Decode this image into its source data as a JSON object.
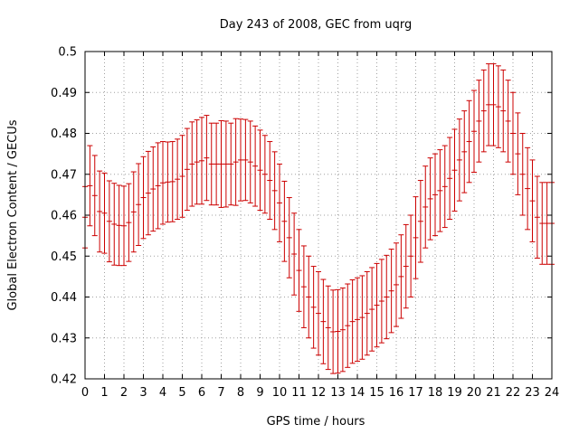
{
  "chart_data": {
    "type": "scatter",
    "title": "Day 243 of 2008, GEC from uqrg",
    "xlabel": "GPS time / hours",
    "ylabel": "Global Electron Content / GECUs",
    "xlim": [
      0,
      24
    ],
    "ylim": [
      0.42,
      0.5
    ],
    "grid": true,
    "error_bars": true,
    "series_color": "#cc0000",
    "xticks": [
      "0",
      "1",
      "2",
      "3",
      "4",
      "5",
      "6",
      "7",
      "8",
      "9",
      "10",
      "11",
      "12",
      "13",
      "14",
      "15",
      "16",
      "17",
      "18",
      "19",
      "20",
      "21",
      "22",
      "23",
      "24"
    ],
    "yticks": [
      "0.42",
      "0.43",
      "0.44",
      "0.45",
      "0.46",
      "0.47",
      "0.48",
      "0.49",
      "0.5"
    ],
    "x": [
      0,
      0.25,
      0.5,
      0.75,
      1,
      1.25,
      1.5,
      1.75,
      2,
      2.25,
      2.5,
      2.75,
      3,
      3.25,
      3.5,
      3.75,
      4,
      4.25,
      4.5,
      4.75,
      5,
      5.25,
      5.5,
      5.75,
      6,
      6.25,
      6.5,
      6.75,
      7,
      7.25,
      7.5,
      7.75,
      8,
      8.25,
      8.5,
      8.75,
      9,
      9.25,
      9.5,
      9.75,
      10,
      10.25,
      10.5,
      10.75,
      11,
      11.25,
      11.5,
      11.75,
      12,
      12.25,
      12.5,
      12.75,
      13,
      13.25,
      13.5,
      13.75,
      14,
      14.25,
      14.5,
      14.75,
      15,
      15.25,
      15.5,
      15.75,
      16,
      16.25,
      16.5,
      16.75,
      17,
      17.25,
      17.5,
      17.75,
      18,
      18.25,
      18.5,
      18.75,
      19,
      19.25,
      19.5,
      19.75,
      20,
      20.25,
      20.5,
      20.75,
      21,
      21.25,
      21.5,
      21.75,
      22,
      22.25,
      22.5,
      22.75,
      23,
      23.25,
      23.5,
      23.75,
      24
    ],
    "y": [
      0.4595,
      0.4672,
      0.4648,
      0.4609,
      0.4605,
      0.4585,
      0.4578,
      0.4575,
      0.4574,
      0.4582,
      0.4608,
      0.4626,
      0.4643,
      0.4654,
      0.4664,
      0.4672,
      0.4679,
      0.4681,
      0.4682,
      0.4688,
      0.4695,
      0.4712,
      0.4725,
      0.473,
      0.4733,
      0.474,
      0.4725,
      0.4725,
      0.4725,
      0.4725,
      0.4725,
      0.473,
      0.4735,
      0.4735,
      0.473,
      0.472,
      0.471,
      0.47,
      0.4685,
      0.466,
      0.463,
      0.4585,
      0.4545,
      0.4505,
      0.4465,
      0.4425,
      0.44,
      0.4375,
      0.436,
      0.434,
      0.4325,
      0.4315,
      0.4316,
      0.432,
      0.433,
      0.434,
      0.4345,
      0.435,
      0.436,
      0.437,
      0.438,
      0.439,
      0.44,
      0.4415,
      0.443,
      0.445,
      0.4475,
      0.45,
      0.4545,
      0.4585,
      0.462,
      0.464,
      0.465,
      0.466,
      0.467,
      0.469,
      0.471,
      0.4735,
      0.4755,
      0.478,
      0.4805,
      0.483,
      0.4855,
      0.487,
      0.487,
      0.4865,
      0.4855,
      0.483,
      0.48,
      0.475,
      0.47,
      0.4665,
      0.4635,
      0.4595,
      0.458,
      0.458,
      0.458
    ],
    "err": [
      0.0075,
      0.0098,
      0.0098,
      0.0099,
      0.0098,
      0.0099,
      0.01,
      0.0098,
      0.0097,
      0.0095,
      0.0098,
      0.01,
      0.01,
      0.0102,
      0.0103,
      0.0105,
      0.0101,
      0.0098,
      0.0098,
      0.0098,
      0.01,
      0.01,
      0.0103,
      0.0103,
      0.0106,
      0.0104,
      0.01,
      0.01,
      0.0106,
      0.0105,
      0.01,
      0.0106,
      0.01,
      0.0099,
      0.01,
      0.0098,
      0.0098,
      0.0095,
      0.0095,
      0.0095,
      0.0095,
      0.0098,
      0.0098,
      0.01,
      0.01,
      0.01,
      0.01,
      0.01,
      0.0102,
      0.0103,
      0.0102,
      0.0102,
      0.0102,
      0.0102,
      0.0102,
      0.0102,
      0.0102,
      0.0102,
      0.0102,
      0.0102,
      0.0102,
      0.0102,
      0.0102,
      0.0102,
      0.0102,
      0.0102,
      0.0102,
      0.01,
      0.01,
      0.01,
      0.01,
      0.01,
      0.01,
      0.01,
      0.01,
      0.01,
      0.01,
      0.01,
      0.01,
      0.01,
      0.01,
      0.01,
      0.01,
      0.01,
      0.01,
      0.01,
      0.01,
      0.01,
      0.01,
      0.01,
      0.01,
      0.01,
      0.01,
      0.01,
      0.01,
      0.01,
      0.01
    ]
  }
}
